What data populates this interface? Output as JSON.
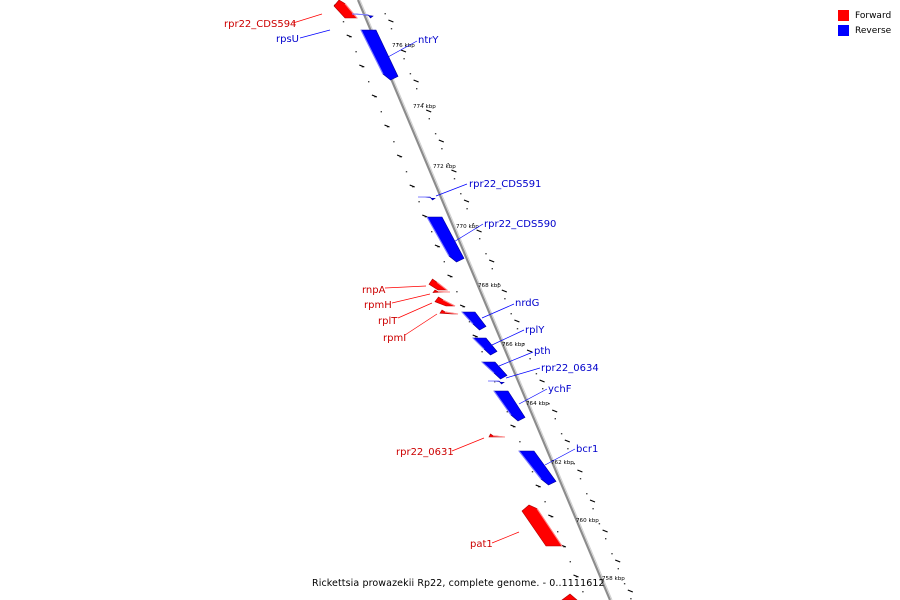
{
  "legend": {
    "forward_label": "Forward",
    "reverse_label": "Reverse",
    "forward_color": "#ff0000",
    "reverse_color": "#0000ff"
  },
  "caption": "Rickettsia prowazekii Rp22, complete genome. - 0..1111612",
  "ticks": [
    "776 kbp",
    "774 kbp",
    "772 kbp",
    "770 kbp",
    "768 kbp",
    "766 kbp",
    "764 kbp",
    "762 kbp",
    "760 kbp",
    "758 kbp"
  ],
  "genes": [
    {
      "name": "rpr22_CDS594",
      "strand": "forward",
      "color": "#ff0000"
    },
    {
      "name": "rpsU",
      "strand": "reverse",
      "color": "#0000ff"
    },
    {
      "name": "ntrY",
      "strand": "reverse",
      "color": "#0000ff"
    },
    {
      "name": "rpr22_CDS591",
      "strand": "reverse",
      "color": "#0000ff"
    },
    {
      "name": "rpr22_CDS590",
      "strand": "reverse",
      "color": "#0000ff"
    },
    {
      "name": "rnpA",
      "strand": "forward",
      "color": "#ff0000"
    },
    {
      "name": "rpmH",
      "strand": "forward",
      "color": "#ff0000"
    },
    {
      "name": "rplT",
      "strand": "forward",
      "color": "#ff0000"
    },
    {
      "name": "rpmI",
      "strand": "forward",
      "color": "#ff0000"
    },
    {
      "name": "nrdG",
      "strand": "reverse",
      "color": "#0000ff"
    },
    {
      "name": "rplY",
      "strand": "reverse",
      "color": "#0000ff"
    },
    {
      "name": "pth",
      "strand": "reverse",
      "color": "#0000ff"
    },
    {
      "name": "rpr22_0634",
      "strand": "reverse",
      "color": "#0000ff"
    },
    {
      "name": "ychF",
      "strand": "reverse",
      "color": "#0000ff"
    },
    {
      "name": "rpr22_0631",
      "strand": "forward",
      "color": "#ff0000"
    },
    {
      "name": "bcr1",
      "strand": "reverse",
      "color": "#0000ff"
    },
    {
      "name": "pat1",
      "strand": "forward",
      "color": "#ff0000"
    }
  ]
}
